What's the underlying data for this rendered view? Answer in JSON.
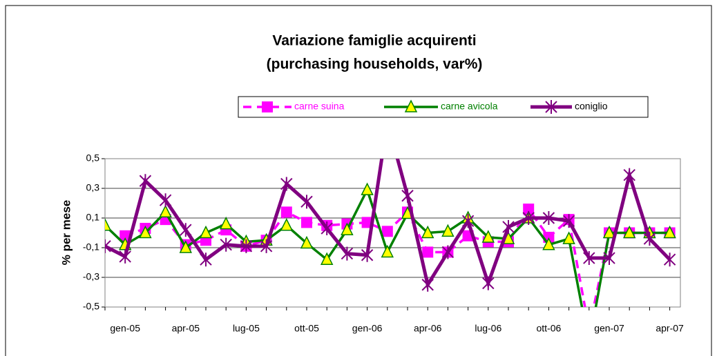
{
  "chart_data": {
    "type": "line",
    "title": [
      "Variazione famiglie acquirenti",
      "(purchasing households, var%)"
    ],
    "y_label": "% per mese",
    "categories": [
      null,
      "gen-05",
      null,
      null,
      "apr-05",
      null,
      null,
      "lug-05",
      null,
      null,
      "ott-05",
      null,
      null,
      "gen-06",
      null,
      null,
      "apr-06",
      null,
      null,
      "lug-06",
      null,
      null,
      "ott-06",
      null,
      null,
      "gen-07",
      null,
      null,
      "apr-07"
    ],
    "series": [
      {
        "name": "carne suina",
        "color": "#ff00ff",
        "marker": "square",
        "dash": true,
        "values": [
          null,
          -0.02,
          0.03,
          0.09,
          -0.08,
          -0.05,
          0.02,
          -0.09,
          -0.05,
          0.14,
          0.07,
          0.05,
          0.06,
          0.07,
          0.01,
          0.14,
          -0.13,
          -0.13,
          -0.02,
          -0.06,
          -0.06,
          0.16,
          -0.03,
          0.09,
          -0.65,
          0.0,
          0.0,
          0.0,
          0.0
        ]
      },
      {
        "name": "carne avicola",
        "color": "#008000",
        "marker": "triangle",
        "dash": false,
        "values": [
          0.05,
          -0.08,
          0.0,
          0.14,
          -0.1,
          0.0,
          0.06,
          -0.06,
          -0.05,
          0.05,
          -0.07,
          -0.18,
          0.02,
          0.29,
          -0.13,
          0.13,
          0.0,
          0.01,
          0.1,
          -0.03,
          -0.04,
          0.1,
          -0.08,
          -0.04,
          -0.75,
          0.0,
          0.0,
          0.0,
          0.0
        ]
      },
      {
        "name": "coniglio",
        "color": "#800080",
        "marker": "star",
        "dash": false,
        "values": [
          -0.09,
          -0.16,
          0.35,
          0.22,
          0.02,
          -0.18,
          -0.08,
          -0.09,
          -0.09,
          0.33,
          0.21,
          0.03,
          -0.14,
          -0.15,
          0.75,
          0.25,
          -0.35,
          -0.13,
          0.08,
          -0.34,
          0.04,
          0.1,
          0.1,
          0.08,
          -0.17,
          -0.17,
          0.39,
          -0.04,
          -0.18
        ]
      }
    ],
    "ylim": [
      -0.5,
      0.5
    ],
    "yticks": [
      {
        "value": -0.5,
        "label": "-0,5"
      },
      {
        "value": -0.3,
        "label": "-0,3"
      },
      {
        "value": -0.1,
        "label": "-0,1"
      },
      {
        "value": 0.1,
        "label": "0,1"
      },
      {
        "value": 0.3,
        "label": "0,3"
      },
      {
        "value": 0.5,
        "label": "0,5"
      }
    ],
    "grid": true
  }
}
